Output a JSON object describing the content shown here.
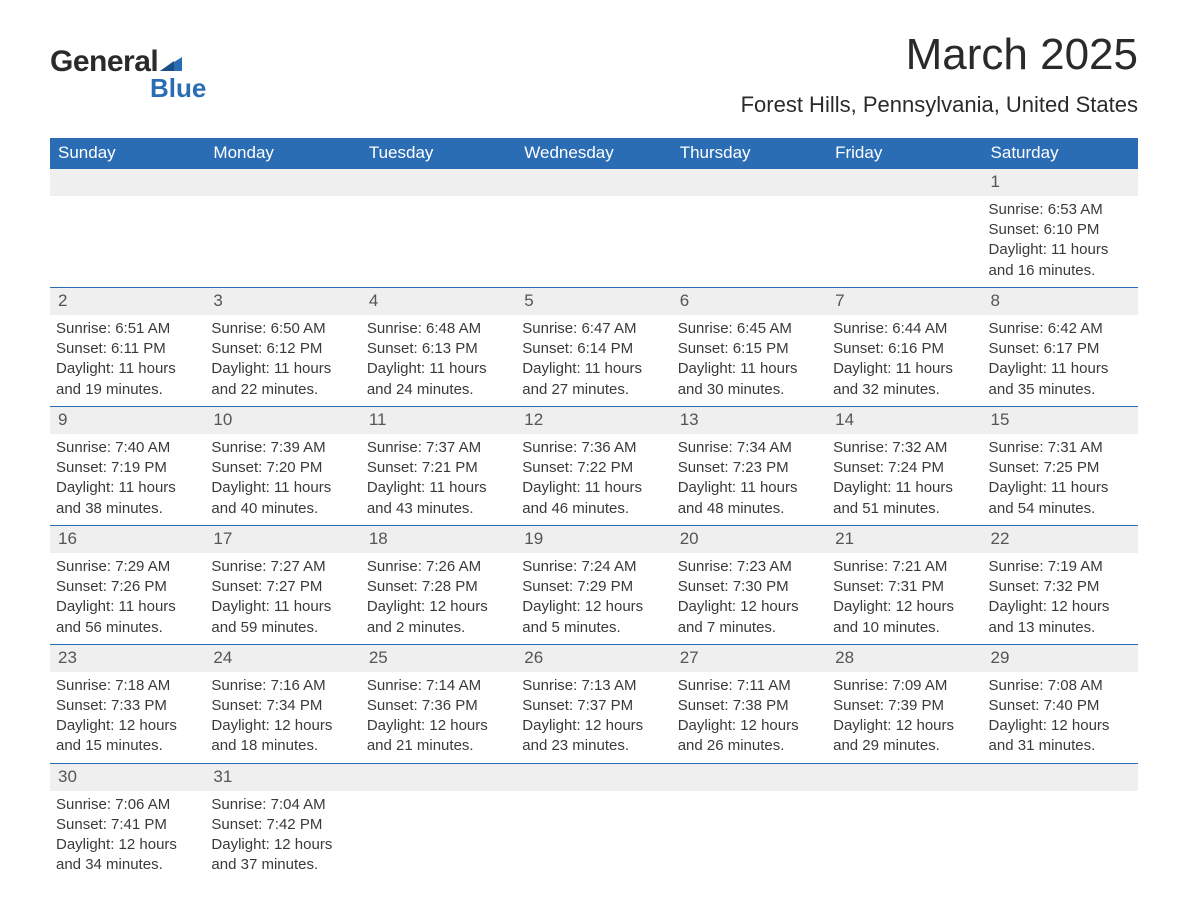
{
  "logo": {
    "word1": "General",
    "word2": "Blue",
    "flag_color": "#2a6db5",
    "text_dark": "#2a2a2a"
  },
  "title": "March 2025",
  "location": "Forest Hills, Pennsylvania, United States",
  "colors": {
    "header_bg": "#2a6db5",
    "header_text": "#ffffff",
    "daynum_bg": "#efefef",
    "border": "#2a6db5",
    "body_text": "#333333"
  },
  "day_headers": [
    "Sunday",
    "Monday",
    "Tuesday",
    "Wednesday",
    "Thursday",
    "Friday",
    "Saturday"
  ],
  "weeks": [
    {
      "nums": [
        "",
        "",
        "",
        "",
        "",
        "",
        "1"
      ],
      "details": [
        "",
        "",
        "",
        "",
        "",
        "",
        "Sunrise: 6:53 AM\nSunset: 6:10 PM\nDaylight: 11 hours and 16 minutes."
      ]
    },
    {
      "nums": [
        "2",
        "3",
        "4",
        "5",
        "6",
        "7",
        "8"
      ],
      "details": [
        "Sunrise: 6:51 AM\nSunset: 6:11 PM\nDaylight: 11 hours and 19 minutes.",
        "Sunrise: 6:50 AM\nSunset: 6:12 PM\nDaylight: 11 hours and 22 minutes.",
        "Sunrise: 6:48 AM\nSunset: 6:13 PM\nDaylight: 11 hours and 24 minutes.",
        "Sunrise: 6:47 AM\nSunset: 6:14 PM\nDaylight: 11 hours and 27 minutes.",
        "Sunrise: 6:45 AM\nSunset: 6:15 PM\nDaylight: 11 hours and 30 minutes.",
        "Sunrise: 6:44 AM\nSunset: 6:16 PM\nDaylight: 11 hours and 32 minutes.",
        "Sunrise: 6:42 AM\nSunset: 6:17 PM\nDaylight: 11 hours and 35 minutes."
      ]
    },
    {
      "nums": [
        "9",
        "10",
        "11",
        "12",
        "13",
        "14",
        "15"
      ],
      "details": [
        "Sunrise: 7:40 AM\nSunset: 7:19 PM\nDaylight: 11 hours and 38 minutes.",
        "Sunrise: 7:39 AM\nSunset: 7:20 PM\nDaylight: 11 hours and 40 minutes.",
        "Sunrise: 7:37 AM\nSunset: 7:21 PM\nDaylight: 11 hours and 43 minutes.",
        "Sunrise: 7:36 AM\nSunset: 7:22 PM\nDaylight: 11 hours and 46 minutes.",
        "Sunrise: 7:34 AM\nSunset: 7:23 PM\nDaylight: 11 hours and 48 minutes.",
        "Sunrise: 7:32 AM\nSunset: 7:24 PM\nDaylight: 11 hours and 51 minutes.",
        "Sunrise: 7:31 AM\nSunset: 7:25 PM\nDaylight: 11 hours and 54 minutes."
      ]
    },
    {
      "nums": [
        "16",
        "17",
        "18",
        "19",
        "20",
        "21",
        "22"
      ],
      "details": [
        "Sunrise: 7:29 AM\nSunset: 7:26 PM\nDaylight: 11 hours and 56 minutes.",
        "Sunrise: 7:27 AM\nSunset: 7:27 PM\nDaylight: 11 hours and 59 minutes.",
        "Sunrise: 7:26 AM\nSunset: 7:28 PM\nDaylight: 12 hours and 2 minutes.",
        "Sunrise: 7:24 AM\nSunset: 7:29 PM\nDaylight: 12 hours and 5 minutes.",
        "Sunrise: 7:23 AM\nSunset: 7:30 PM\nDaylight: 12 hours and 7 minutes.",
        "Sunrise: 7:21 AM\nSunset: 7:31 PM\nDaylight: 12 hours and 10 minutes.",
        "Sunrise: 7:19 AM\nSunset: 7:32 PM\nDaylight: 12 hours and 13 minutes."
      ]
    },
    {
      "nums": [
        "23",
        "24",
        "25",
        "26",
        "27",
        "28",
        "29"
      ],
      "details": [
        "Sunrise: 7:18 AM\nSunset: 7:33 PM\nDaylight: 12 hours and 15 minutes.",
        "Sunrise: 7:16 AM\nSunset: 7:34 PM\nDaylight: 12 hours and 18 minutes.",
        "Sunrise: 7:14 AM\nSunset: 7:36 PM\nDaylight: 12 hours and 21 minutes.",
        "Sunrise: 7:13 AM\nSunset: 7:37 PM\nDaylight: 12 hours and 23 minutes.",
        "Sunrise: 7:11 AM\nSunset: 7:38 PM\nDaylight: 12 hours and 26 minutes.",
        "Sunrise: 7:09 AM\nSunset: 7:39 PM\nDaylight: 12 hours and 29 minutes.",
        "Sunrise: 7:08 AM\nSunset: 7:40 PM\nDaylight: 12 hours and 31 minutes."
      ]
    },
    {
      "nums": [
        "30",
        "31",
        "",
        "",
        "",
        "",
        ""
      ],
      "details": [
        "Sunrise: 7:06 AM\nSunset: 7:41 PM\nDaylight: 12 hours and 34 minutes.",
        "Sunrise: 7:04 AM\nSunset: 7:42 PM\nDaylight: 12 hours and 37 minutes.",
        "",
        "",
        "",
        "",
        ""
      ]
    }
  ]
}
